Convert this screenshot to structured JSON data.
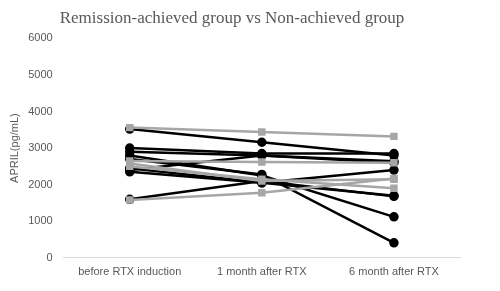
{
  "chart_data": {
    "type": "line",
    "title": "Remission-achieved group vs Non-achieved group",
    "y_label": "APRIL(pg/mL)",
    "categories": [
      "before RTX induction",
      "1 month after RTX",
      "6 month after RTX"
    ],
    "series": [
      {
        "color": "#a6a6a6",
        "marker": "square",
        "values": [
          3560,
          3440,
          3320
        ]
      },
      {
        "color": "#a6a6a6",
        "marker": "square",
        "values": [
          1580,
          1780,
          2170
        ]
      },
      {
        "color": "#a6a6a6",
        "marker": "square",
        "values": [
          2580,
          2100,
          2150
        ]
      },
      {
        "color": "#a6a6a6",
        "marker": "square",
        "values": [
          2500,
          2150,
          1900
        ]
      },
      {
        "color": "#a6a6a6",
        "marker": "square",
        "values": [
          2650,
          2620,
          2600
        ]
      },
      {
        "color": "#000000",
        "marker": "circle",
        "values": [
          3520,
          3160,
          2800
        ]
      },
      {
        "color": "#000000",
        "marker": "circle",
        "values": [
          3000,
          2850,
          2850
        ]
      },
      {
        "color": "#000000",
        "marker": "circle",
        "values": [
          2900,
          2800,
          2640
        ]
      },
      {
        "color": "#000000",
        "marker": "circle",
        "values": [
          2800,
          2250,
          1120
        ]
      },
      {
        "color": "#000000",
        "marker": "circle",
        "values": [
          2700,
          2280,
          410
        ]
      },
      {
        "color": "#000000",
        "marker": "circle",
        "values": [
          2450,
          2050,
          2400
        ]
      },
      {
        "color": "#000000",
        "marker": "circle",
        "values": [
          2400,
          2800,
          2600
        ]
      },
      {
        "color": "#000000",
        "marker": "circle",
        "values": [
          1600,
          2100,
          1680
        ]
      },
      {
        "color": "#000000",
        "marker": "circle",
        "values": [
          2350,
          2050,
          1700
        ]
      }
    ],
    "ylim": [
      0,
      6000
    ],
    "yticks": [
      0,
      1000,
      2000,
      3000,
      4000,
      5000,
      6000
    ],
    "grid": false
  }
}
